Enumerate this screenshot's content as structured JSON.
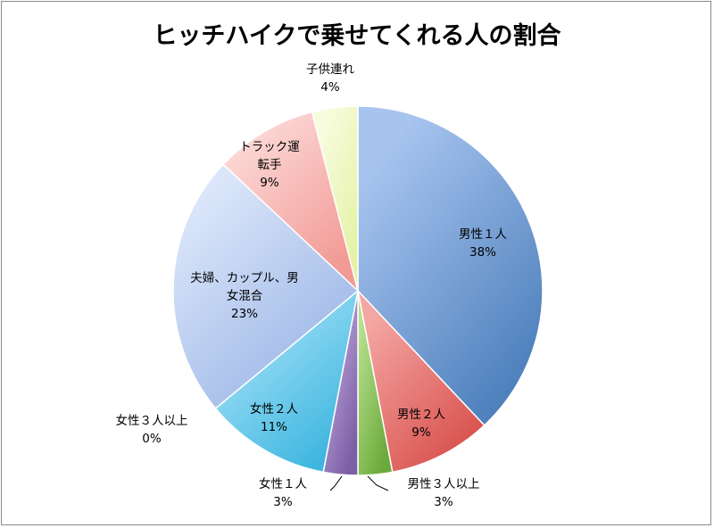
{
  "chart_data": {
    "type": "pie",
    "title": "ヒッチハイクで乗せてくれる人の割合",
    "slices": [
      {
        "label": [
          "男性１人"
        ],
        "percent_label": "38%",
        "value": 38,
        "color": "#4f81bd",
        "light": "#a7c4ef"
      },
      {
        "label": [
          "男性２人"
        ],
        "percent_label": "9%",
        "value": 9,
        "color": "#d9534f",
        "light": "#f4a6a3"
      },
      {
        "label": [
          "男性３人以上"
        ],
        "percent_label": "3%",
        "value": 3,
        "color": "#6aaa3a",
        "light": "#b8e08f"
      },
      {
        "label": [
          "女性１人"
        ],
        "percent_label": "3%",
        "value": 3,
        "color": "#7d5fa6",
        "light": "#c2aee0"
      },
      {
        "label": [
          "女性３人以上"
        ],
        "percent_label": "0%",
        "value": 0,
        "color": "#a9d2ea",
        "light": "#d8ecf7"
      },
      {
        "label": [
          "女性２人"
        ],
        "percent_label": "11%",
        "value": 11,
        "color": "#3fb6e0",
        "light": "#a6e3f7"
      },
      {
        "label": [
          "夫婦、カップル、男",
          "女混合"
        ],
        "percent_label": "23%",
        "value": 23,
        "color": "#9bb6e6",
        "light": "#dbe6fa"
      },
      {
        "label": [
          "トラック運",
          "転手"
        ],
        "percent_label": "9%",
        "value": 9,
        "color": "#f29a96",
        "light": "#fcd9d7"
      },
      {
        "label": [
          "子供連れ"
        ],
        "percent_label": "4%",
        "value": 4,
        "color": "#e4f2a6",
        "light": "#f8fcdf"
      }
    ],
    "legend": "none"
  }
}
